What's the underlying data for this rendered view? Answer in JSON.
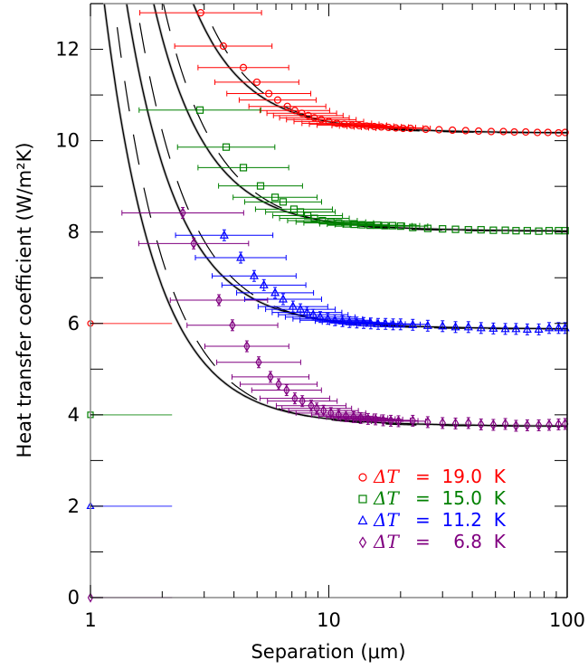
{
  "chart_data": {
    "type": "scatter",
    "title": "",
    "xlabel": "Separation (μm)",
    "ylabel": "Heat transfer coefficient (W/m²K)",
    "xscale": "log",
    "xlim": [
      1,
      100
    ],
    "ylim": [
      0,
      13
    ],
    "x_ticks": [
      {
        "value": 1,
        "label": "1"
      },
      {
        "value": 10,
        "label": "10"
      },
      {
        "value": 100,
        "label": "100"
      }
    ],
    "y_ticks": [
      {
        "value": 0,
        "label": "0"
      },
      {
        "value": 2,
        "label": "2"
      },
      {
        "value": 4,
        "label": "4"
      },
      {
        "value": 6,
        "label": "6"
      },
      {
        "value": 8,
        "label": "8"
      },
      {
        "value": 10,
        "label": "10"
      },
      {
        "value": 12,
        "label": "12"
      }
    ],
    "grid": false,
    "legend_position": "bottom-right",
    "series": [
      {
        "name": "ΔT = 19.0 K",
        "legend_symbol": "circle",
        "legend_prefix": "ΔT",
        "legend_value": "=  19.0  K",
        "color": "#ff0000",
        "offset_marker_y": 6,
        "plateau": 10.17,
        "model_A": 20.2,
        "points": [
          [
            2.9,
            12.8,
            0.8
          ],
          [
            3.61,
            12.07,
            0.6
          ],
          [
            4.38,
            11.6,
            0.55
          ],
          [
            4.99,
            11.28,
            0.5
          ],
          [
            5.6,
            11.03,
            0.5
          ],
          [
            6.1,
            10.89,
            0.45
          ],
          [
            6.7,
            10.75,
            0.45
          ],
          [
            7.2,
            10.66,
            0.4
          ],
          [
            7.7,
            10.6,
            0.4
          ],
          [
            8.2,
            10.55,
            0.4
          ],
          [
            8.7,
            10.5,
            0.4
          ],
          [
            9.3,
            10.46,
            0.4
          ],
          [
            10.0,
            10.42,
            0.4
          ],
          [
            10.8,
            10.38,
            0.4
          ],
          [
            11.6,
            10.36,
            0.4
          ],
          [
            12.5,
            10.34,
            0.4
          ],
          [
            13.4,
            10.33,
            0.3
          ],
          [
            14.4,
            10.32,
            0.3
          ],
          [
            15.5,
            10.31,
            0.3
          ],
          [
            16.6,
            10.3,
            0.3
          ],
          [
            17.8,
            10.29,
            0.3
          ],
          [
            19.1,
            10.28,
            0.3
          ],
          [
            20.5,
            10.27,
            0.3
          ],
          [
            22.0,
            10.27,
            0
          ],
          [
            25.5,
            10.25,
            0
          ],
          [
            29.0,
            10.24,
            0
          ],
          [
            33.0,
            10.23,
            0
          ],
          [
            37.5,
            10.22,
            0
          ],
          [
            42.5,
            10.21,
            0
          ],
          [
            48.0,
            10.2,
            0
          ],
          [
            54.0,
            10.2,
            0
          ],
          [
            60.0,
            10.19,
            0
          ],
          [
            67.0,
            10.19,
            0
          ],
          [
            75.0,
            10.18,
            0
          ],
          [
            83.0,
            10.18,
            0
          ],
          [
            92.0,
            10.17,
            0
          ],
          [
            98.0,
            10.18,
            0
          ]
        ]
      },
      {
        "name": "ΔT = 15.0 K",
        "legend_symbol": "square",
        "legend_prefix": "ΔT",
        "legend_value": "=  15.0  K",
        "color": "#008000",
        "offset_marker_y": 4,
        "plateau": 8.02,
        "model_A": 16.7,
        "points": [
          [
            2.88,
            10.67,
            0.8
          ],
          [
            3.71,
            9.86,
            0.6
          ],
          [
            4.38,
            9.41,
            0.55
          ],
          [
            5.17,
            9.01,
            0.5
          ],
          [
            5.95,
            8.76,
            0.5
          ],
          [
            6.43,
            8.66,
            0.45
          ],
          [
            7.14,
            8.5,
            0.45
          ],
          [
            7.6,
            8.44,
            0.4
          ],
          [
            8.15,
            8.36,
            0.4
          ],
          [
            8.7,
            8.3,
            0.4
          ],
          [
            9.4,
            8.25,
            0.4
          ],
          [
            10.2,
            8.22,
            0.4
          ],
          [
            11.0,
            8.2,
            0.4
          ],
          [
            11.9,
            8.18,
            0.3
          ],
          [
            12.8,
            8.17,
            0.3
          ],
          [
            13.8,
            8.16,
            0.3
          ],
          [
            14.9,
            8.15,
            0.3
          ],
          [
            16.0,
            8.15,
            0.3
          ],
          [
            17.2,
            8.14,
            0.3
          ],
          [
            18.5,
            8.14,
            0.3
          ],
          [
            20.0,
            8.13,
            0.3
          ],
          [
            22.5,
            8.1,
            0
          ],
          [
            26.0,
            8.08,
            0
          ],
          [
            30.0,
            8.07,
            0
          ],
          [
            34.0,
            8.06,
            0
          ],
          [
            38.5,
            8.05,
            0
          ],
          [
            43.5,
            8.05,
            0
          ],
          [
            49.0,
            8.04,
            0
          ],
          [
            55.0,
            8.04,
            0
          ],
          [
            61.0,
            8.03,
            0
          ],
          [
            68.0,
            8.03,
            0
          ],
          [
            76.0,
            8.02,
            0
          ],
          [
            84.0,
            8.03,
            0
          ],
          [
            92.0,
            8.03,
            0
          ],
          [
            98.0,
            8.03,
            0
          ]
        ]
      },
      {
        "name": "ΔT = 11.2 K",
        "legend_symbol": "triangle",
        "legend_prefix": "ΔT",
        "legend_value": "=  11.2  K",
        "color": "#0000ff",
        "offset_marker_y": 2,
        "plateau": 5.88,
        "model_A": 14.2,
        "points": [
          [
            3.64,
            7.93,
            0.6
          ],
          [
            4.27,
            7.44,
            0.55
          ],
          [
            4.86,
            7.04,
            0.5
          ],
          [
            5.34,
            6.84,
            0.5
          ],
          [
            5.95,
            6.67,
            0.45
          ],
          [
            6.43,
            6.53,
            0.45
          ],
          [
            7.07,
            6.37,
            0.4
          ],
          [
            7.6,
            6.31,
            0.4
          ],
          [
            8.1,
            6.24,
            0.4
          ],
          [
            8.6,
            6.19,
            0.4
          ],
          [
            9.2,
            6.14,
            0.4
          ],
          [
            9.9,
            6.1,
            0.4
          ],
          [
            10.6,
            6.07,
            0.4
          ],
          [
            11.4,
            6.05,
            0.3
          ],
          [
            12.2,
            6.03,
            0.3
          ],
          [
            13.1,
            6.02,
            0.3
          ],
          [
            14.0,
            6.01,
            0.3
          ],
          [
            15.0,
            6.0,
            0.3
          ],
          [
            16.1,
            5.99,
            0.3
          ],
          [
            17.3,
            5.99,
            0.3
          ],
          [
            18.6,
            5.98,
            0.3
          ],
          [
            20.0,
            5.98,
            0.3
          ],
          [
            22.5,
            5.97,
            0
          ],
          [
            26.0,
            5.95,
            0
          ],
          [
            30.0,
            5.94,
            0
          ],
          [
            34.0,
            5.92,
            0
          ],
          [
            38.5,
            5.92,
            0
          ],
          [
            43.5,
            5.9,
            0
          ],
          [
            49.0,
            5.89,
            0
          ],
          [
            55.0,
            5.88,
            0
          ],
          [
            61.0,
            5.88,
            0
          ],
          [
            68.0,
            5.87,
            0
          ],
          [
            76.0,
            5.87,
            0
          ],
          [
            84.0,
            5.9,
            0
          ],
          [
            92.0,
            5.9,
            0
          ],
          [
            98.0,
            5.9,
            0
          ]
        ]
      },
      {
        "name": "ΔT = 6.8 K",
        "legend_symbol": "diamond",
        "legend_prefix": "ΔT",
        "legend_value": "=    6.8  K",
        "color": "#800080",
        "offset_marker_y": 0,
        "plateau": 3.75,
        "model_A": 12.0,
        "points": [
          [
            2.44,
            8.42,
            0.8
          ],
          [
            2.71,
            7.75,
            0.7
          ],
          [
            3.46,
            6.51,
            0.6
          ],
          [
            3.94,
            5.96,
            0.55
          ],
          [
            4.53,
            5.5,
            0.5
          ],
          [
            5.08,
            5.15,
            0.5
          ],
          [
            5.69,
            4.83,
            0.45
          ],
          [
            6.16,
            4.67,
            0.45
          ],
          [
            6.65,
            4.54,
            0.4
          ],
          [
            7.2,
            4.36,
            0.4
          ],
          [
            7.74,
            4.3,
            0.4
          ],
          [
            8.43,
            4.2,
            0.4
          ],
          [
            8.9,
            4.14,
            0.4
          ],
          [
            9.5,
            4.09,
            0.4
          ],
          [
            10.2,
            4.04,
            0.4
          ],
          [
            11.0,
            4.0,
            0.3
          ],
          [
            11.8,
            3.97,
            0.3
          ],
          [
            12.7,
            3.95,
            0.3
          ],
          [
            13.6,
            3.93,
            0.3
          ],
          [
            14.6,
            3.91,
            0.3
          ],
          [
            15.7,
            3.9,
            0.3
          ],
          [
            16.9,
            3.88,
            0.3
          ],
          [
            18.2,
            3.87,
            0.3
          ],
          [
            19.6,
            3.86,
            0.3
          ],
          [
            22.5,
            3.87,
            0
          ],
          [
            26.0,
            3.84,
            0
          ],
          [
            30.0,
            3.82,
            0
          ],
          [
            34.0,
            3.81,
            0
          ],
          [
            38.5,
            3.82,
            0
          ],
          [
            43.5,
            3.79,
            0
          ],
          [
            49.0,
            3.78,
            0
          ],
          [
            55.0,
            3.8,
            0
          ],
          [
            61.0,
            3.76,
            0
          ],
          [
            68.0,
            3.77,
            0
          ],
          [
            76.0,
            3.77,
            0
          ],
          [
            84.0,
            3.78,
            0
          ],
          [
            92.0,
            3.79,
            0
          ],
          [
            98.0,
            3.8,
            0
          ]
        ]
      }
    ],
    "offset_marker_x_end": 2.2,
    "model_dashed_factor": 1.22
  }
}
